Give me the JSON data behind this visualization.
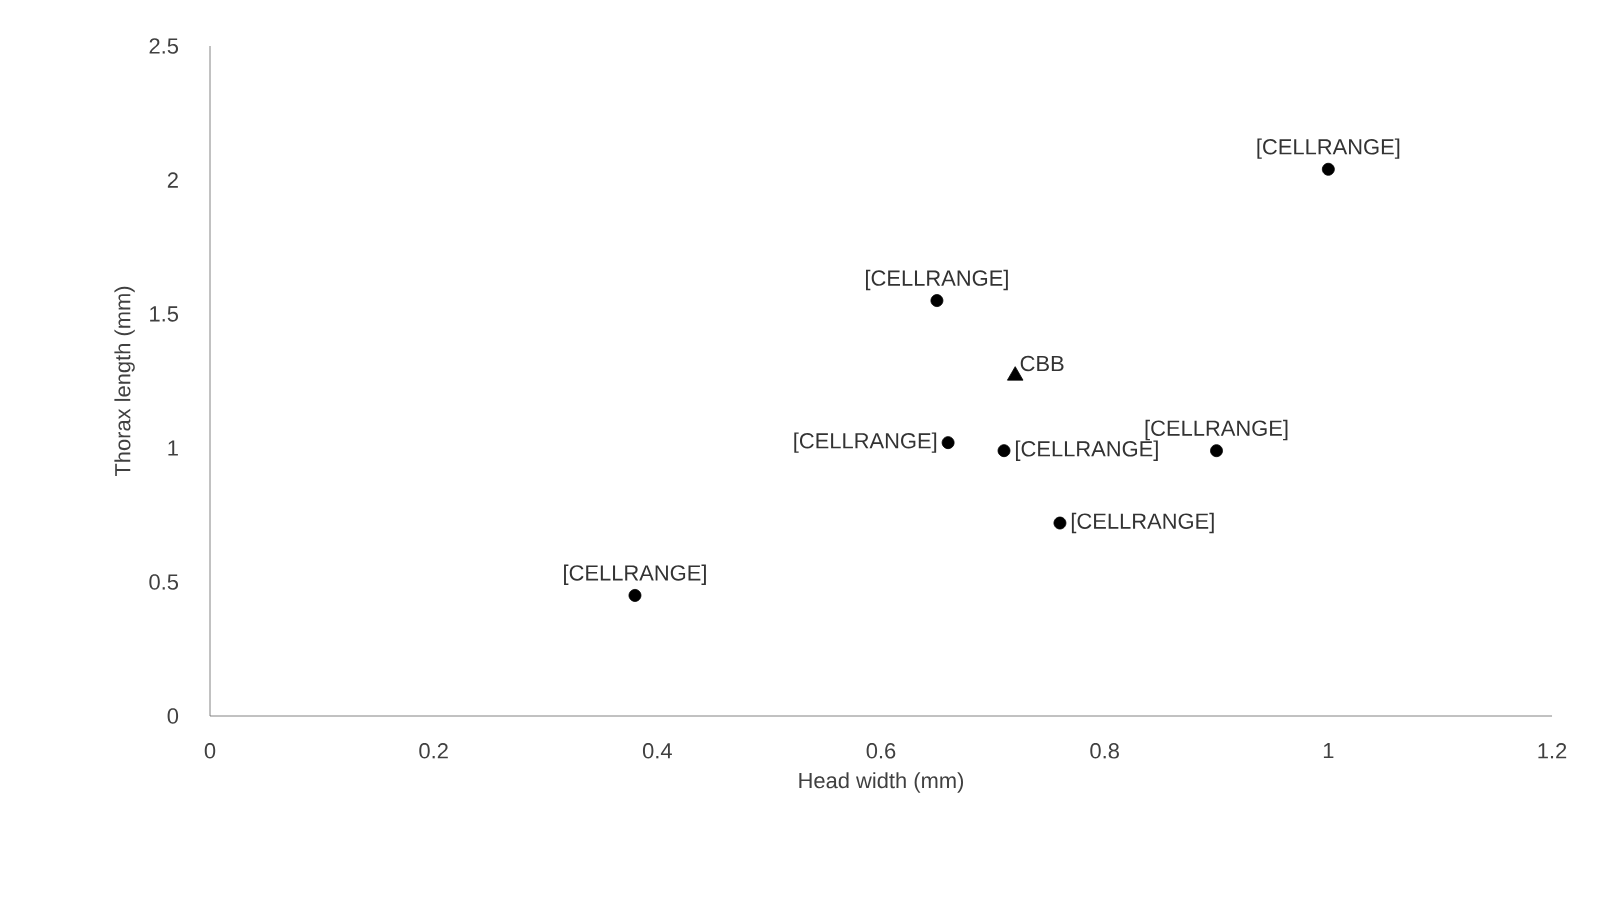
{
  "chart_data": {
    "type": "scatter",
    "xlabel": "Head width (mm)",
    "ylabel": "Thorax length (mm)",
    "xlim": [
      0,
      1.2
    ],
    "ylim": [
      0,
      2.5
    ],
    "xticks": [
      0,
      0.2,
      0.4,
      0.6,
      0.8,
      1,
      1.2
    ],
    "yticks": [
      0,
      0.5,
      1,
      1.5,
      2,
      2.5
    ],
    "grid": false,
    "series": [
      {
        "color": "#000000",
        "marker": "circle",
        "x": [
          0.38,
          0.65,
          1.0,
          0.66,
          0.71,
          0.9,
          0.76
        ],
        "values": [
          0.45,
          1.55,
          2.04,
          1.02,
          0.99,
          0.99,
          0.72
        ]
      },
      {
        "name": "CBB",
        "color": "#000000",
        "marker": "triangle",
        "x": [
          0.72
        ],
        "values": [
          1.27
        ]
      }
    ],
    "annotations": [
      {
        "text": "[CELLRANGE]",
        "x": 0.38,
        "y": 0.45
      },
      {
        "text": "[CELLRANGE]",
        "x": 0.65,
        "y": 1.55
      },
      {
        "text": "[CELLRANGE]",
        "x": 1.0,
        "y": 2.04
      },
      {
        "text": "[CELLRANGE]",
        "x": 0.66,
        "y": 1.02
      },
      {
        "text": "[CELLRANGE]",
        "x": 0.71,
        "y": 0.99
      },
      {
        "text": "[CELLRANGE]",
        "x": 0.9,
        "y": 0.99
      },
      {
        "text": "[CELLRANGE]",
        "x": 0.76,
        "y": 0.72
      }
    ]
  }
}
